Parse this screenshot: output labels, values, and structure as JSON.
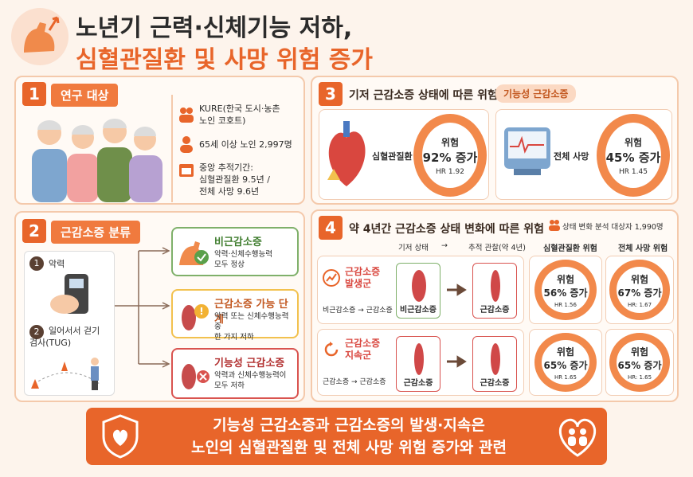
{
  "header": {
    "title_line1": "노년기 근력·신체기능 저하,",
    "title_line2": "심혈관질환 및 사망 위험 증가"
  },
  "section1": {
    "number": "1",
    "title": "연구 대상",
    "items": [
      [
        "KURE(한국 도시·농촌",
        "노인 코호트)"
      ],
      [
        "65세 이상 노인 2,997명"
      ],
      [
        "중앙 추적기간:",
        "심혈관질환 9.5년 /",
        "전체 사망 9.6년"
      ]
    ]
  },
  "section2": {
    "number": "2",
    "title": "근감소증 분류",
    "tests": [
      {
        "number": "1",
        "label": [
          "악력"
        ]
      },
      {
        "number": "2",
        "label": [
          "일어서서 걷기",
          "검사(TUG)"
        ]
      }
    ],
    "categories": [
      {
        "name": "비근감소증",
        "desc": [
          "악력·신체수행능력",
          "모두 정상"
        ]
      },
      {
        "name": "근감소증 가능 단계",
        "desc": [
          "악력 또는 신체수행능력 중",
          "한 가지 저하"
        ]
      },
      {
        "name": "기능성 근감소증",
        "desc": [
          "악력과 신체수행능력이",
          "모두 저하"
        ]
      }
    ]
  },
  "section3": {
    "number": "3",
    "title": "기저 근감소증 상태에 따른 위험",
    "tag": "기능성 근감소증",
    "cards": [
      {
        "outcome": "심혈관질환",
        "risk_label": "위험",
        "risk": "92% 증가",
        "hr": "HR 1.92"
      },
      {
        "outcome": "전체 사망",
        "risk_label": "위험",
        "risk": "45% 증가",
        "hr": "HR 1.45"
      }
    ]
  },
  "section4": {
    "number": "4",
    "title": "약 4년간 근감소증 상태 변화에 따른 위험",
    "note": "상태 변화 분석 대상자 1,990명",
    "columns": [
      "기저 상태",
      "→",
      "추적 관찰(약 4년)",
      "심혈관질환 위험",
      "전체 사망 위험"
    ],
    "groups": [
      {
        "name": [
          "근감소증",
          "발생군"
        ],
        "transition": "비근감소증 → 근감소증",
        "from": "비근감소증",
        "to": "근감소증",
        "cvd": {
          "label": "위험",
          "risk": "56% 증가",
          "hr": "HR 1.56"
        },
        "death": {
          "label": "위험",
          "risk": "67% 증가",
          "hr": "HR: 1.67"
        }
      },
      {
        "name": [
          "근감소증",
          "지속군"
        ],
        "transition": "근감소증 → 근감소증",
        "from": "근감소증",
        "to": "근감소증",
        "cvd": {
          "label": "위험",
          "risk": "65% 증가",
          "hr": "HR 1.65"
        },
        "death": {
          "label": "위험",
          "risk": "65% 증가",
          "hr": "HR: 1.65"
        }
      }
    ]
  },
  "footer": {
    "lines": [
      "기능성 근감소증과 근감소증의 발생·지속은",
      "노인의 심혈관질환 및 전체 사망 위험 증가와 관련"
    ]
  }
}
